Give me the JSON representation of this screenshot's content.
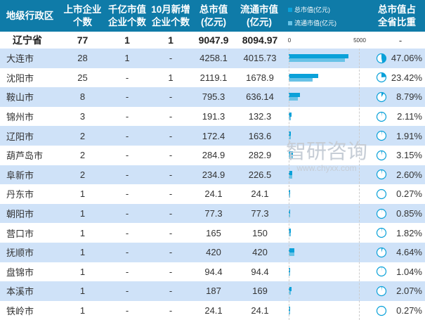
{
  "header": {
    "region": "地级行政区",
    "listed": "上市企业\n个数",
    "trillion": "千亿市值\n企业个数",
    "new_oct": "10月新增\n企业个数",
    "total": "总市值\n(亿元)",
    "float": "流通市值\n(亿元)",
    "legend_total": "总市值(亿元)",
    "legend_float": "流通市值(亿元)",
    "share": "总市值占\n全省比重"
  },
  "colors": {
    "header": "#0f7ba8",
    "total_bar": "#0aa1d9",
    "float_bar": "#68c2e6",
    "alt_row": "#cfe2f8"
  },
  "axis": {
    "min": "0",
    "max": "5000"
  },
  "province": {
    "name": "辽宁省",
    "listed": "77",
    "trillion": "1",
    "new_oct": "1",
    "total": "9047.9",
    "float": "8094.97",
    "share": "-"
  },
  "rows": [
    {
      "name": "大连市",
      "listed": "28",
      "trillion": "1",
      "new_oct": "-",
      "total": "4258.1",
      "float": "4015.73",
      "share": "47.06%"
    },
    {
      "name": "沈阳市",
      "listed": "25",
      "trillion": "-",
      "new_oct": "1",
      "total": "2119.1",
      "float": "1678.9",
      "share": "23.42%"
    },
    {
      "name": "鞍山市",
      "listed": "8",
      "trillion": "-",
      "new_oct": "-",
      "total": "795.3",
      "float": "636.14",
      "share": "8.79%"
    },
    {
      "name": "锦州市",
      "listed": "3",
      "trillion": "-",
      "new_oct": "-",
      "total": "191.3",
      "float": "132.3",
      "share": "2.11%"
    },
    {
      "name": "辽阳市",
      "listed": "2",
      "trillion": "-",
      "new_oct": "-",
      "total": "172.4",
      "float": "163.6",
      "share": "1.91%"
    },
    {
      "name": "葫芦岛市",
      "listed": "2",
      "trillion": "-",
      "new_oct": "-",
      "total": "284.9",
      "float": "282.9",
      "share": "3.15%"
    },
    {
      "name": "阜新市",
      "listed": "2",
      "trillion": "-",
      "new_oct": "-",
      "total": "234.9",
      "float": "226.5",
      "share": "2.60%"
    },
    {
      "name": "丹东市",
      "listed": "1",
      "trillion": "-",
      "new_oct": "-",
      "total": "24.1",
      "float": "24.1",
      "share": "0.27%"
    },
    {
      "name": "朝阳市",
      "listed": "1",
      "trillion": "-",
      "new_oct": "-",
      "total": "77.3",
      "float": "77.3",
      "share": "0.85%"
    },
    {
      "name": "营口市",
      "listed": "1",
      "trillion": "-",
      "new_oct": "-",
      "total": "165",
      "float": "150",
      "share": "1.82%"
    },
    {
      "name": "抚顺市",
      "listed": "1",
      "trillion": "-",
      "new_oct": "-",
      "total": "420",
      "float": "420",
      "share": "4.64%"
    },
    {
      "name": "盘锦市",
      "listed": "1",
      "trillion": "-",
      "new_oct": "-",
      "total": "94.4",
      "float": "94.4",
      "share": "1.04%"
    },
    {
      "name": "本溪市",
      "listed": "1",
      "trillion": "-",
      "new_oct": "-",
      "total": "187",
      "float": "169",
      "share": "2.07%"
    },
    {
      "name": "铁岭市",
      "listed": "1",
      "trillion": "-",
      "new_oct": "-",
      "total": "24.1",
      "float": "24.1",
      "share": "0.27%"
    }
  ],
  "watermark": {
    "brand": "智研咨询",
    "url": "www.chyxx.com"
  }
}
